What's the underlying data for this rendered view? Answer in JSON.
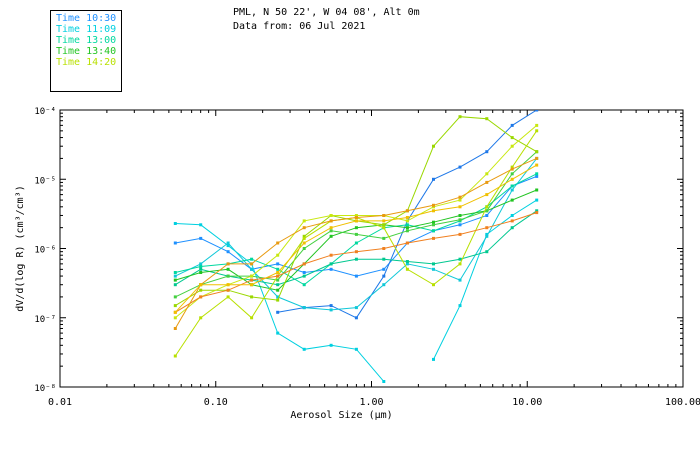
{
  "header": {
    "line1": "PML, N 50 22', W 04 08', Alt 0m",
    "line2": "Data from: 06 Jul 2021"
  },
  "legend": {
    "items": [
      {
        "label": "Time 10:30",
        "color": "#1e90ff"
      },
      {
        "label": "Time 11:09",
        "color": "#00d0e0"
      },
      {
        "label": "Time 13:00",
        "color": "#00d8a0"
      },
      {
        "label": "Time 13:40",
        "color": "#22c422"
      },
      {
        "label": "Time 14:20",
        "color": "#b8e000"
      }
    ]
  },
  "chart_data": {
    "type": "line",
    "xscale": "log",
    "yscale": "log",
    "xlabel": "Aerosol Size (μm)",
    "ylabel": "dV/d(log R) (cm³/cm³)",
    "xlim": [
      0.01,
      100
    ],
    "ylim": [
      1e-08,
      0.0001
    ],
    "xticks": [
      {
        "value": 0.01,
        "label": "0.01"
      },
      {
        "value": 0.1,
        "label": "0.10"
      },
      {
        "value": 1,
        "label": "1.00"
      },
      {
        "value": 10,
        "label": "10.00"
      },
      {
        "value": 100,
        "label": "100.00"
      }
    ],
    "yticks": [
      {
        "value": 1e-08,
        "label": "10⁻⁸"
      },
      {
        "value": 1e-07,
        "label": "10⁻⁷"
      },
      {
        "value": 1e-06,
        "label": "10⁻⁶"
      },
      {
        "value": 1e-05,
        "label": "10⁻⁵"
      },
      {
        "value": 0.0001,
        "label": "10⁻⁴"
      }
    ],
    "x": [
      0.055,
      0.08,
      0.12,
      0.17,
      0.25,
      0.37,
      0.55,
      0.8,
      1.2,
      1.7,
      2.5,
      3.7,
      5.5,
      8.0,
      11.5
    ],
    "series": [
      {
        "color": "#1e90ff",
        "values": [
          1.2e-06,
          1.4e-06,
          9e-07,
          5e-07,
          6e-07,
          4.5e-07,
          5e-07,
          4e-07,
          5e-07,
          1.2e-06,
          1.8e-06,
          2.2e-06,
          3e-06,
          8e-06,
          1.1e-05
        ]
      },
      {
        "color": "#1e78e8",
        "values": [
          null,
          null,
          null,
          null,
          1.2e-07,
          1.4e-07,
          1.5e-07,
          1e-07,
          4e-07,
          2.5e-06,
          1e-05,
          1.5e-05,
          2.5e-05,
          6e-05,
          0.0001
        ]
      },
      {
        "color": "#00d0e0",
        "values": [
          2.3e-06,
          2.2e-06,
          1.1e-06,
          6e-07,
          6e-08,
          3.5e-08,
          4e-08,
          3.5e-08,
          1.2e-08,
          null,
          2.5e-08,
          1.5e-07,
          1.6e-06,
          3e-06,
          5e-06
        ]
      },
      {
        "color": "#10c8d8",
        "values": [
          4e-07,
          6e-07,
          1.2e-06,
          5e-07,
          2e-07,
          1.4e-07,
          1.3e-07,
          1.4e-07,
          3e-07,
          6e-07,
          5e-07,
          3.5e-07,
          1.5e-06,
          7e-06,
          2e-05
        ]
      },
      {
        "color": "#00d8a0",
        "values": [
          4.5e-07,
          5.5e-07,
          6e-07,
          7e-07,
          5e-07,
          3e-07,
          6e-07,
          1.2e-06,
          2e-06,
          2.2e-06,
          1.8e-06,
          2.5e-06,
          4e-06,
          8e-06,
          1.2e-05
        ]
      },
      {
        "color": "#00c890",
        "values": [
          3e-07,
          5e-07,
          4e-07,
          3.5e-07,
          3e-07,
          4e-07,
          6e-07,
          7e-07,
          7e-07,
          6.5e-07,
          6e-07,
          7e-07,
          9e-07,
          2e-06,
          3.5e-06
        ]
      },
      {
        "color": "#22c422",
        "values": [
          3.5e-07,
          4.5e-07,
          5e-07,
          3e-07,
          2.5e-07,
          6e-07,
          1.5e-06,
          2e-06,
          2.2e-06,
          2e-06,
          2.4e-06,
          3e-06,
          3.5e-06,
          5e-06,
          7e-06
        ]
      },
      {
        "color": "#44d040",
        "values": [
          2e-07,
          3e-07,
          4e-07,
          4e-07,
          3.5e-07,
          1e-06,
          1.8e-06,
          1.6e-06,
          1.4e-06,
          1.8e-06,
          2.2e-06,
          2.6e-06,
          3.5e-06,
          1.2e-05,
          2.5e-05
        ]
      },
      {
        "color": "#9ad800",
        "values": [
          1.5e-07,
          2.5e-07,
          2.5e-07,
          2e-07,
          1.8e-07,
          1.5e-06,
          3e-06,
          2.5e-06,
          2.2e-06,
          3.5e-06,
          3e-05,
          8e-05,
          7.5e-05,
          4e-05,
          2.5e-05
        ]
      },
      {
        "color": "#b8e000",
        "values": [
          2.8e-08,
          1e-07,
          2e-07,
          1e-07,
          4e-07,
          1.4e-06,
          2.5e-06,
          2.8e-06,
          2e-06,
          5e-07,
          3e-07,
          6e-07,
          4e-06,
          1.5e-05,
          5e-05
        ]
      },
      {
        "color": "#c8e810",
        "values": [
          1e-07,
          2e-07,
          3e-07,
          4e-07,
          8e-07,
          2.5e-06,
          3e-06,
          3e-06,
          3e-06,
          2.5e-06,
          4e-06,
          5e-06,
          1.2e-05,
          3e-05,
          6e-05
        ]
      },
      {
        "color": "#f08020",
        "values": [
          1.2e-07,
          2e-07,
          2.5e-07,
          3.5e-07,
          4e-07,
          6e-07,
          8e-07,
          9e-07,
          1e-06,
          1.2e-06,
          1.4e-06,
          1.6e-06,
          2e-06,
          2.5e-06,
          3.3e-06
        ]
      },
      {
        "color": "#e89a10",
        "values": [
          7e-08,
          3e-07,
          6e-07,
          6e-07,
          1.2e-06,
          2e-06,
          2.5e-06,
          2.8e-06,
          3e-06,
          3.5e-06,
          4.2e-06,
          5.5e-06,
          9e-06,
          1.4e-05,
          2e-05
        ]
      },
      {
        "color": "#f0c000",
        "values": [
          1.2e-07,
          3e-07,
          3e-07,
          3e-07,
          4.5e-07,
          1.2e-06,
          2e-06,
          2.5e-06,
          2.5e-06,
          2.8e-06,
          3.5e-06,
          4e-06,
          6e-06,
          1e-05,
          1.6e-05
        ]
      }
    ]
  }
}
